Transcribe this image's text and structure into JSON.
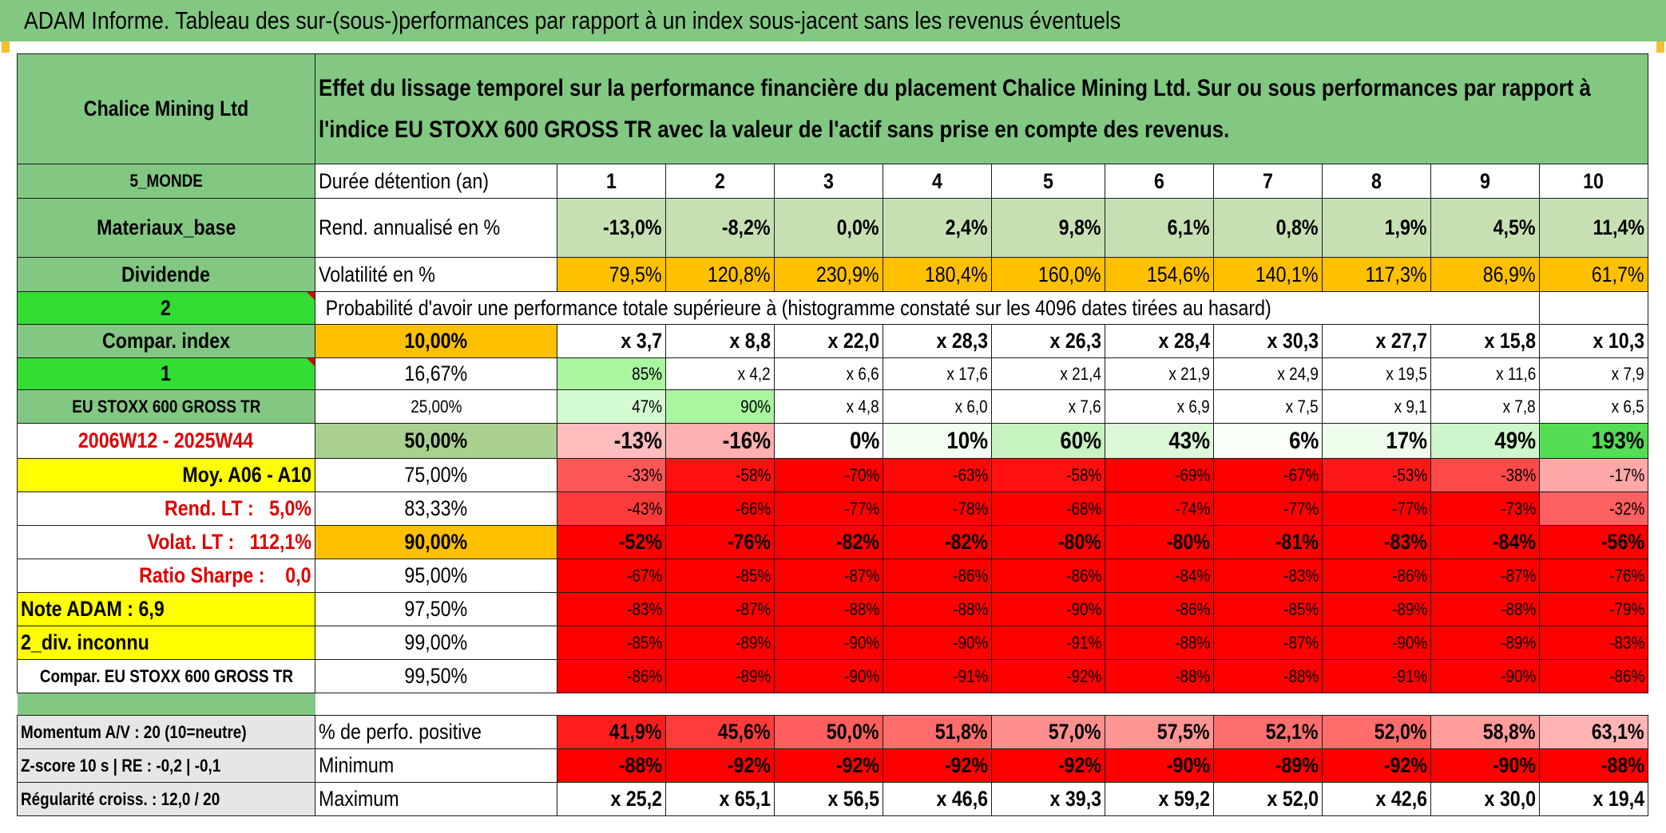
{
  "title": "ADAM Informe. Tableau des sur-(sous-)performances par rapport à un index sous-jacent sans les revenus éventuels",
  "asset_name": "Chalice Mining Ltd",
  "header_text": "Effet du lissage temporel sur la performance financière du placement Chalice Mining Ltd. Sur ou sous performances par rapport à l'indice EU STOXX 600 GROSS TR avec la valeur de l'actif sans prise en compte des revenus.",
  "left": {
    "region": "5_MONDE",
    "sector": "Materiaux_base",
    "dividend": "Dividende",
    "num2": "2",
    "compar_index": "Compar. index",
    "num1": "1",
    "index_name": "EU STOXX 600 GROSS TR",
    "period": "2006W12 - 2025W44",
    "moy": "Moy. A06 - A10",
    "rend_lt": "Rend. LT :   5,0%",
    "volat_lt": "Volat. LT :   112,1%",
    "sharpe": "Ratio Sharpe :    0,0",
    "note": "Note ADAM : 6,9",
    "div": "2_div. inconnu",
    "compar2": "Compar. EU STOXX 600 GROSS TR",
    "momentum": "Momentum A/V : 20 (10=neutre)",
    "zscore": "Z-score 10 s | RE : -0,2 | -0,1",
    "regularite": "Régularité croiss. : 12,0 / 20"
  },
  "labels": {
    "duree": "Durée détention (an)",
    "rend": "Rend. annualisé en %",
    "volat": "Volatilité en %",
    "proba": "Probabilité d'avoir une performance totale supérieure à (histogramme constaté sur les 4096 dates tirées au hasard)",
    "pos": "% de perfo. positive",
    "min": "Minimum",
    "max": "Maximum"
  },
  "years": [
    "1",
    "2",
    "3",
    "4",
    "5",
    "6",
    "7",
    "8",
    "9",
    "10"
  ],
  "rend": [
    "-13,0%",
    "-8,2%",
    "0,0%",
    "2,4%",
    "9,8%",
    "6,1%",
    "0,8%",
    "1,9%",
    "4,5%",
    "11,4%"
  ],
  "volat": [
    "79,5%",
    "120,8%",
    "230,9%",
    "180,4%",
    "160,0%",
    "154,6%",
    "140,1%",
    "117,3%",
    "86,9%",
    "61,7%"
  ],
  "quantiles": [
    {
      "p": "10,00%",
      "vals": [
        "x 3,7",
        "x 8,8",
        "x 22,0",
        "x 28,3",
        "x 26,3",
        "x 28,4",
        "x 30,3",
        "x 27,7",
        "x 15,8",
        "x 10,3"
      ]
    },
    {
      "p": "16,67%",
      "vals": [
        "85%",
        "x 4,2",
        "x 6,6",
        "x 17,6",
        "x 21,4",
        "x 21,9",
        "x 24,9",
        "x 19,5",
        "x 11,6",
        "x 7,9"
      ]
    },
    {
      "p": "25,00%",
      "vals": [
        "47%",
        "90%",
        "x 4,8",
        "x 6,0",
        "x 7,6",
        "x 6,9",
        "x 7,5",
        "x 9,1",
        "x 7,8",
        "x 6,5"
      ]
    },
    {
      "p": "50,00%",
      "vals": [
        "-13%",
        "-16%",
        "0%",
        "10%",
        "60%",
        "43%",
        "6%",
        "17%",
        "49%",
        "193%"
      ]
    },
    {
      "p": "75,00%",
      "vals": [
        "-33%",
        "-58%",
        "-70%",
        "-63%",
        "-58%",
        "-69%",
        "-67%",
        "-53%",
        "-38%",
        "-17%"
      ]
    },
    {
      "p": "83,33%",
      "vals": [
        "-43%",
        "-66%",
        "-77%",
        "-78%",
        "-68%",
        "-74%",
        "-77%",
        "-77%",
        "-73%",
        "-32%"
      ]
    },
    {
      "p": "90,00%",
      "vals": [
        "-52%",
        "-76%",
        "-82%",
        "-82%",
        "-80%",
        "-80%",
        "-81%",
        "-83%",
        "-84%",
        "-56%"
      ]
    },
    {
      "p": "95,00%",
      "vals": [
        "-67%",
        "-85%",
        "-87%",
        "-86%",
        "-86%",
        "-84%",
        "-83%",
        "-86%",
        "-87%",
        "-76%"
      ]
    },
    {
      "p": "97,50%",
      "vals": [
        "-83%",
        "-87%",
        "-88%",
        "-88%",
        "-90%",
        "-86%",
        "-85%",
        "-89%",
        "-88%",
        "-79%"
      ]
    },
    {
      "p": "99,00%",
      "vals": [
        "-85%",
        "-89%",
        "-90%",
        "-90%",
        "-91%",
        "-88%",
        "-87%",
        "-90%",
        "-89%",
        "-83%"
      ]
    },
    {
      "p": "99,50%",
      "vals": [
        "-86%",
        "-89%",
        "-90%",
        "-91%",
        "-92%",
        "-88%",
        "-88%",
        "-91%",
        "-90%",
        "-86%"
      ]
    }
  ],
  "pos": [
    "41,9%",
    "45,6%",
    "50,0%",
    "51,8%",
    "57,0%",
    "57,5%",
    "52,1%",
    "52,0%",
    "58,8%",
    "63,1%"
  ],
  "min": [
    "-88%",
    "-92%",
    "-92%",
    "-92%",
    "-92%",
    "-90%",
    "-89%",
    "-92%",
    "-90%",
    "-88%"
  ],
  "max": [
    "x 25,2",
    "x 65,1",
    "x 56,5",
    "x 46,6",
    "x 39,3",
    "x 59,2",
    "x 52,0",
    "x 42,6",
    "x 30,0",
    "x 19,4"
  ],
  "colors": {
    "header_green": "#82c882",
    "bright_green": "#33dd33",
    "yellow": "#ffff00",
    "orange": "#ffc000",
    "light_green": "#c6e0b4",
    "red": "#ff0000"
  },
  "cell_colors": {
    "quantiles": [
      [
        "#ffffff",
        "#ffffff",
        "#ffffff",
        "#ffffff",
        "#ffffff",
        "#ffffff",
        "#ffffff",
        "#ffffff",
        "#ffffff",
        "#ffffff"
      ],
      [
        "#a9f5a0",
        "#ffffff",
        "#ffffff",
        "#ffffff",
        "#ffffff",
        "#ffffff",
        "#ffffff",
        "#ffffff",
        "#ffffff",
        "#ffffff"
      ],
      [
        "#d4fbd0",
        "#a9f5a0",
        "#ffffff",
        "#ffffff",
        "#ffffff",
        "#ffffff",
        "#ffffff",
        "#ffffff",
        "#ffffff",
        "#ffffff"
      ],
      [
        "#ffbdbd",
        "#ffb0b0",
        "#ffffff",
        "#f3fff1",
        "#c6f3c0",
        "#dcf8d8",
        "#fbfffa",
        "#eefdeb",
        "#cff5ca",
        "#55dd55"
      ],
      [
        "#ff5656",
        "#ff1010",
        "#ff0000",
        "#ff0808",
        "#ff1010",
        "#ff0000",
        "#ff0000",
        "#ff1818",
        "#ff4a4a",
        "#ffa8a8"
      ],
      [
        "#ff3a3a",
        "#ff0000",
        "#ff0000",
        "#ff0000",
        "#ff0000",
        "#ff0000",
        "#ff0000",
        "#ff0000",
        "#ff0000",
        "#ff6060"
      ],
      [
        "#ff0000",
        "#ff0000",
        "#ff0000",
        "#ff0000",
        "#ff0000",
        "#ff0000",
        "#ff0000",
        "#ff0000",
        "#ff0000",
        "#ff0000"
      ],
      [
        "#ff0000",
        "#ff0000",
        "#ff0000",
        "#ff0000",
        "#ff0000",
        "#ff0000",
        "#ff0000",
        "#ff0000",
        "#ff0000",
        "#ff0000"
      ],
      [
        "#ff0000",
        "#ff0000",
        "#ff0000",
        "#ff0000",
        "#ff0000",
        "#ff0000",
        "#ff0000",
        "#ff0000",
        "#ff0000",
        "#ff0000"
      ],
      [
        "#ff0000",
        "#ff0000",
        "#ff0000",
        "#ff0000",
        "#ff0000",
        "#ff0000",
        "#ff0000",
        "#ff0000",
        "#ff0000",
        "#ff0000"
      ],
      [
        "#ff0000",
        "#ff0000",
        "#ff0000",
        "#ff0000",
        "#ff0000",
        "#ff0000",
        "#ff0000",
        "#ff0000",
        "#ff0000",
        "#ff0000"
      ]
    ],
    "pos": [
      "#ff1c1c",
      "#ff3c3c",
      "#ff5e5e",
      "#ff6c6c",
      "#ff8e8e",
      "#ff9494",
      "#ff6e6e",
      "#ff6c6c",
      "#ff9c9c",
      "#ffb4b4"
    ],
    "min": [
      "#ff0000",
      "#ff0000",
      "#ff0000",
      "#ff0000",
      "#ff0000",
      "#ff0000",
      "#ff0000",
      "#ff0000",
      "#ff0000",
      "#ff0000"
    ]
  }
}
